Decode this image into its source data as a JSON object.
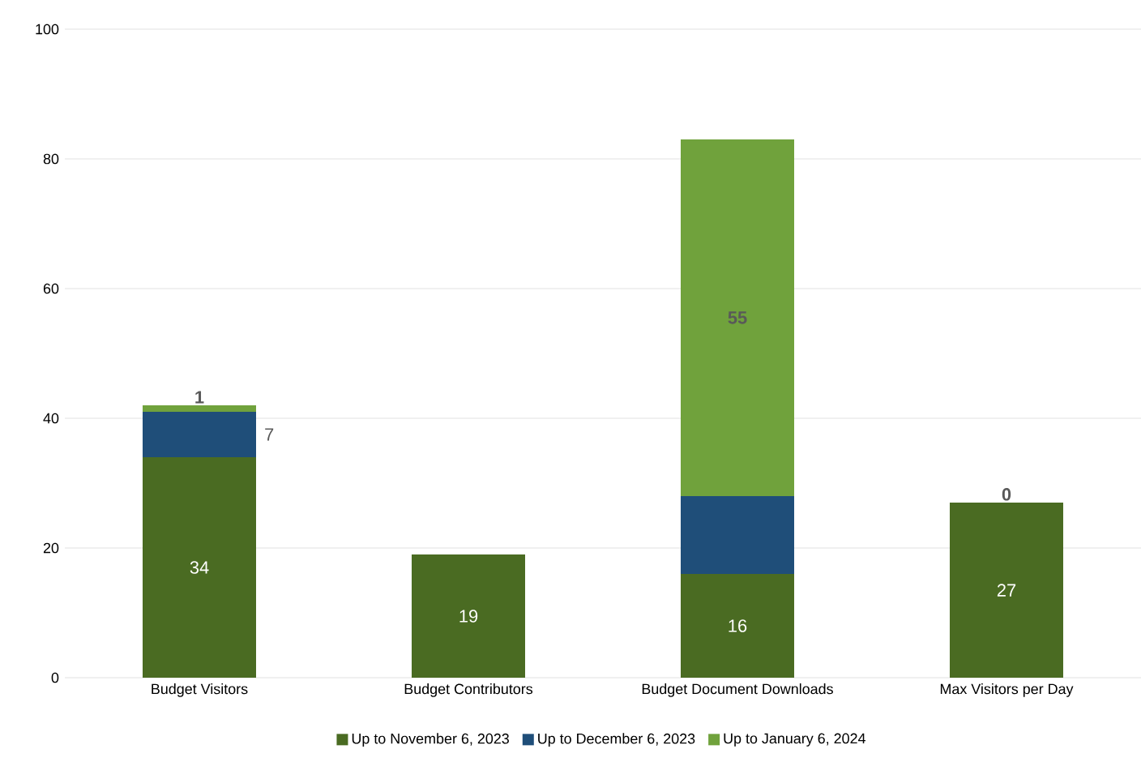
{
  "chart_data": {
    "type": "bar",
    "stacked": true,
    "categories": [
      "Budget Visitors",
      "Budget Contributors",
      "Budget Document Downloads",
      "Max Visitors per Day"
    ],
    "series": [
      {
        "name": "Up to November 6, 2023",
        "color": "#4a6b22",
        "values": [
          34,
          19,
          16,
          27
        ],
        "value_labels": [
          "34",
          "19",
          "16",
          "27"
        ]
      },
      {
        "name": "Up to December 6, 2023",
        "color": "#1f4e79",
        "values": [
          7,
          0,
          12,
          0
        ],
        "value_labels": [
          "7",
          null,
          null,
          null
        ]
      },
      {
        "name": "Up to January 6, 2024",
        "color": "#70a23c",
        "values": [
          1,
          0,
          55,
          0
        ],
        "value_labels": [
          "1",
          null,
          "55",
          "0"
        ]
      }
    ],
    "ylim": [
      0,
      100
    ],
    "yticks": [
      0,
      20,
      40,
      60,
      80,
      100
    ],
    "grid": "y",
    "legend": "bottom"
  }
}
